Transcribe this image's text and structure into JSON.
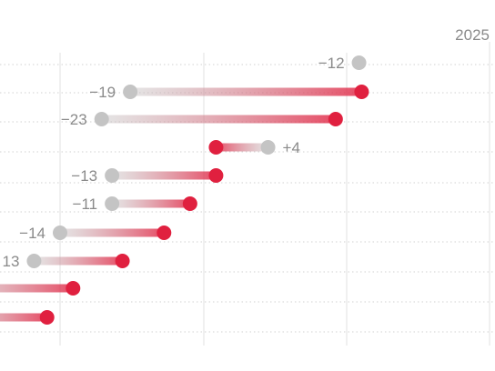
{
  "chart_data": {
    "type": "dumbbell",
    "grid": true,
    "x_reference_labels": [
      "2025"
    ],
    "colors": {
      "start_point": "#c4c4c4",
      "end_point": "#e0203f",
      "gridline_vertical": "#e2e2e2",
      "gridline_horizontal": "#d2d2d2",
      "label_text": "#8a8a8a"
    },
    "rows": [
      {
        "start": 165,
        "end": null,
        "label": "−12"
      },
      {
        "start": 77,
        "end": 166,
        "label": "−19"
      },
      {
        "start": 66,
        "end": 156,
        "label": "−23"
      },
      {
        "start": 130,
        "end": 110,
        "label": "+4"
      },
      {
        "start": 70,
        "end": 110,
        "label": "−13"
      },
      {
        "start": 70,
        "end": 100,
        "label": "−11"
      },
      {
        "start": 50,
        "end": 90,
        "label": "−14"
      },
      {
        "start": 40,
        "end": 74,
        "label": "13"
      },
      {
        "start": null,
        "end": 55,
        "label": ""
      },
      {
        "start": null,
        "end": 45,
        "label": ""
      }
    ]
  }
}
